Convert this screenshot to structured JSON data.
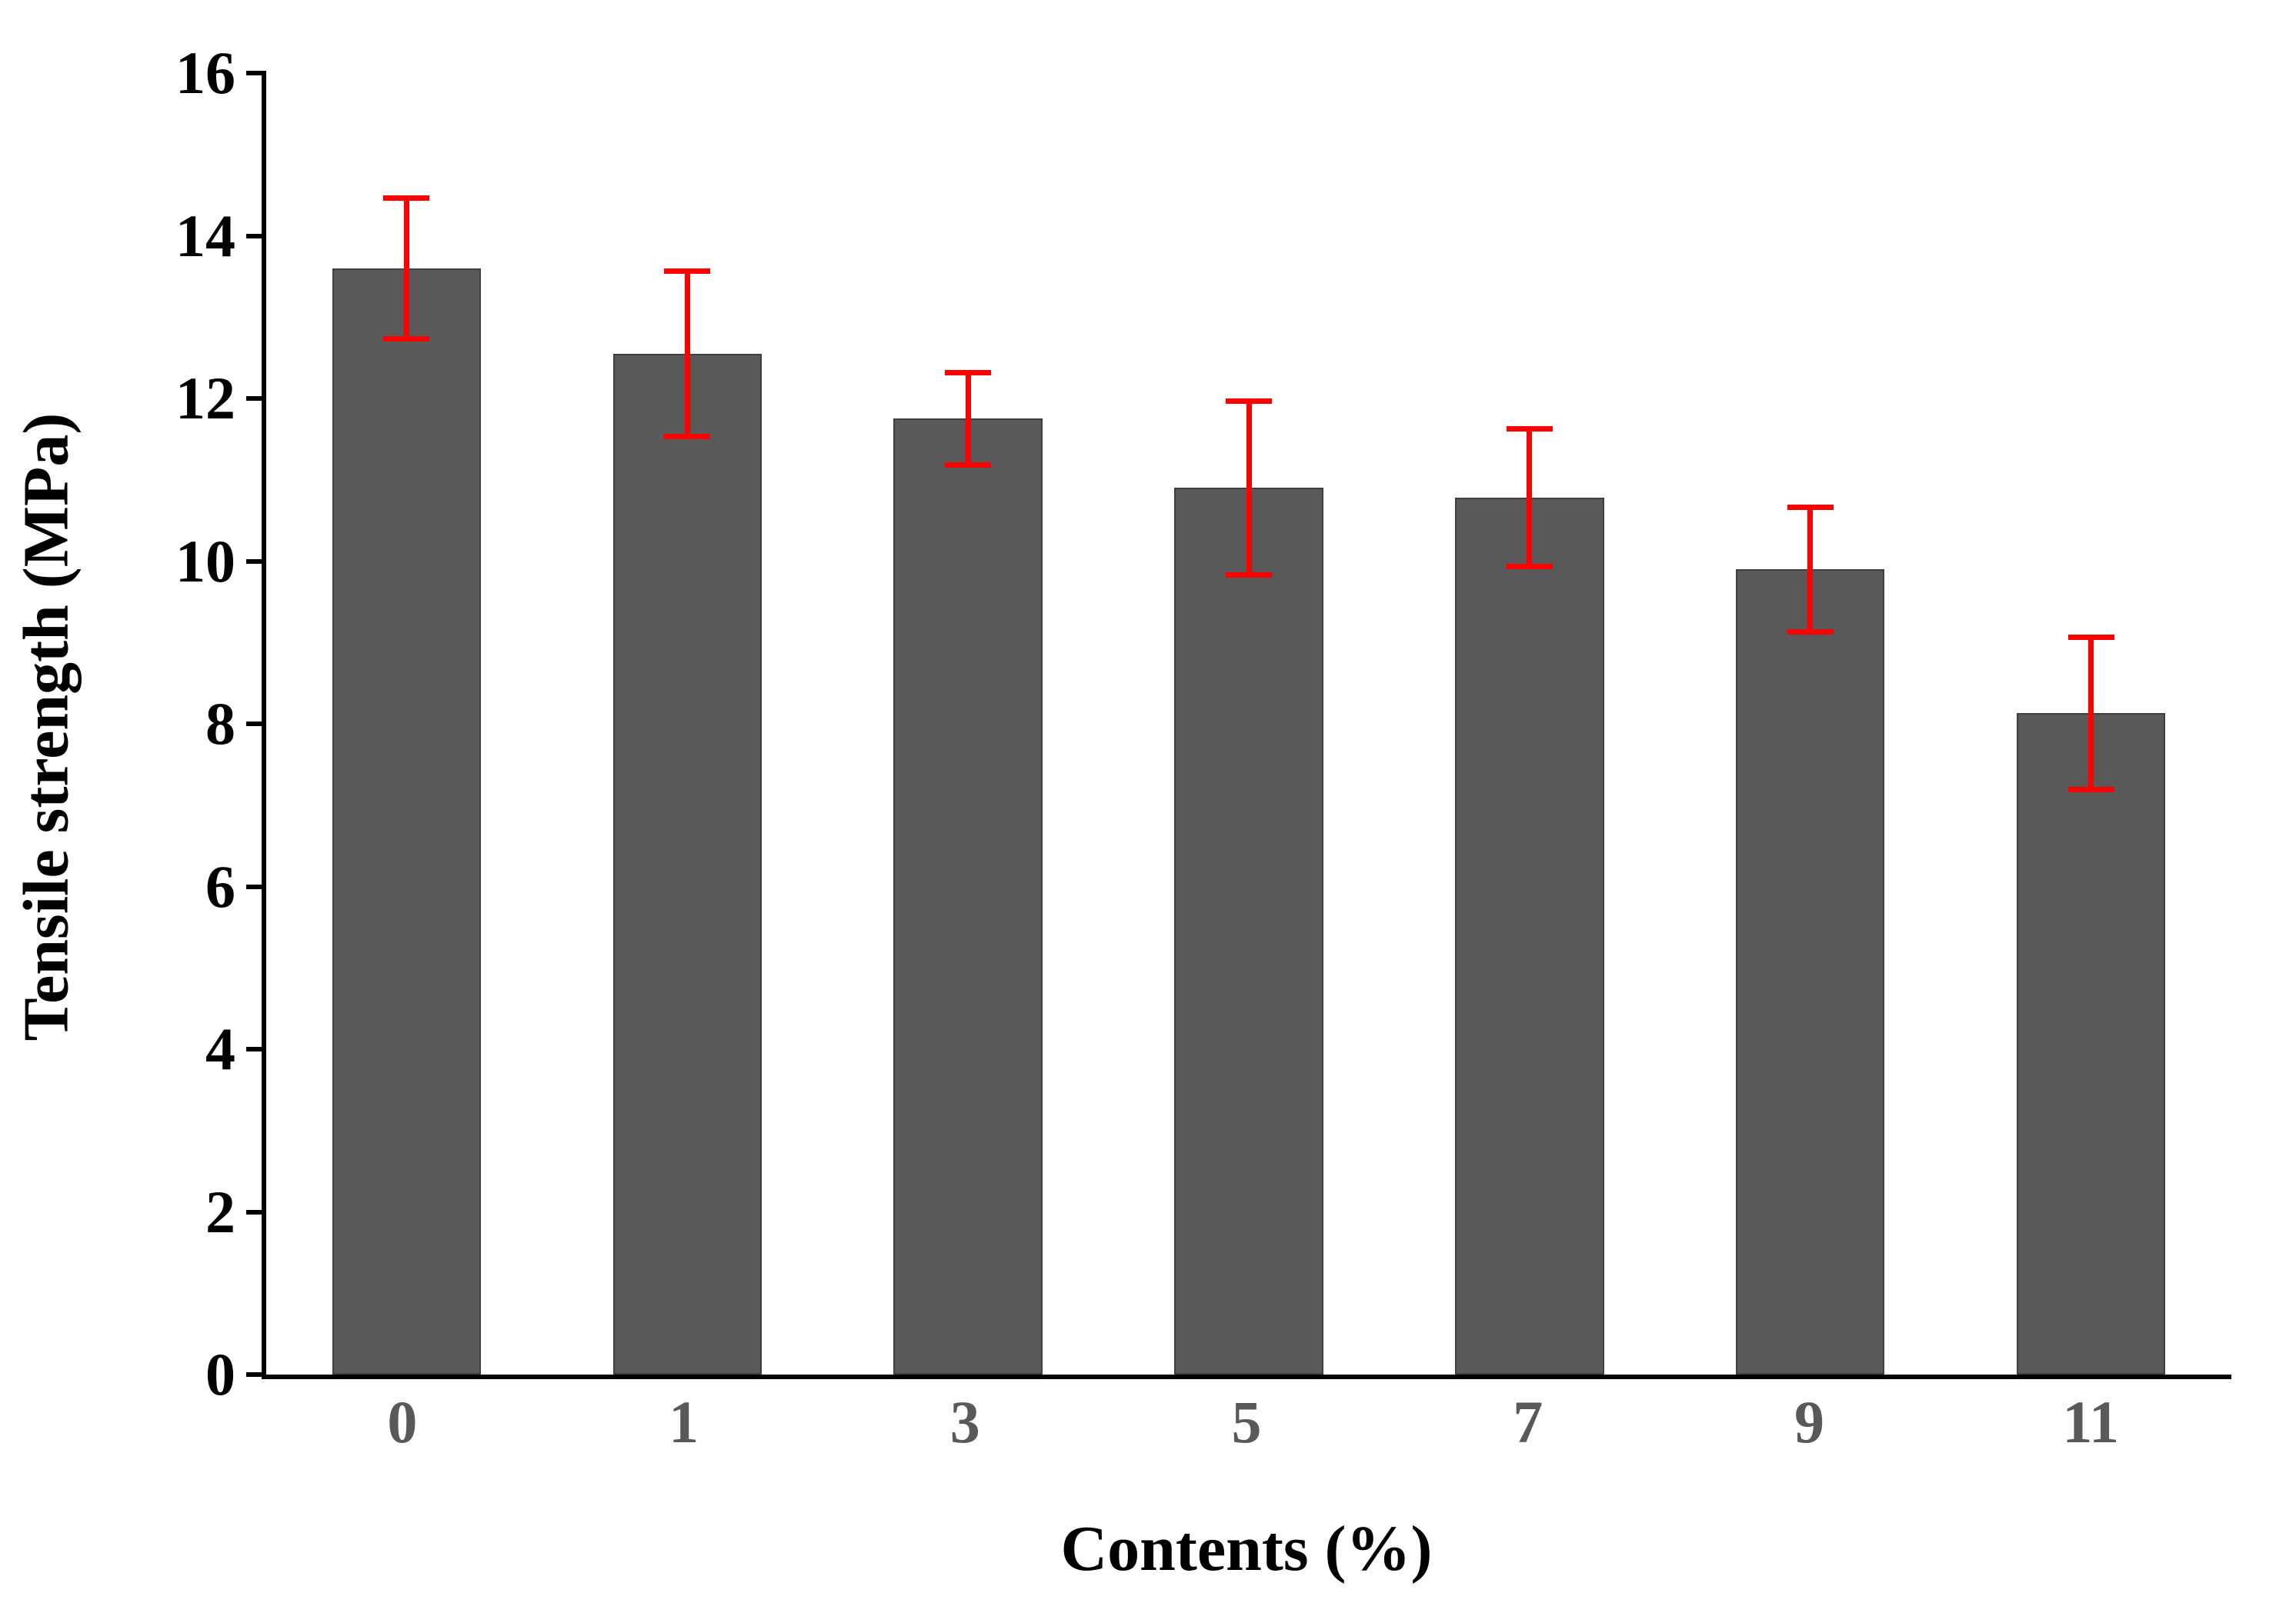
{
  "chart_data": {
    "type": "bar",
    "title": "",
    "xlabel": "Contents (%)",
    "ylabel": "Tensile strength (MPa)",
    "categories": [
      "0",
      "1",
      "3",
      "5",
      "7",
      "9",
      "11"
    ],
    "values": [
      13.6,
      12.55,
      11.75,
      10.9,
      10.78,
      9.9,
      8.13
    ],
    "errors": [
      0.9,
      1.05,
      0.6,
      1.1,
      0.88,
      0.8,
      0.97
    ],
    "ylim": [
      0,
      16
    ],
    "ytick_step": 2,
    "yticks": [
      "0",
      "2",
      "4",
      "6",
      "8",
      "10",
      "12",
      "14",
      "16"
    ],
    "bar_color": "#595959",
    "bar_border_color": "#3f3f3f",
    "error_color": "#ff0000",
    "axis_color": "#000000",
    "xtick_color": "#595959",
    "grid": false,
    "legend": false
  }
}
